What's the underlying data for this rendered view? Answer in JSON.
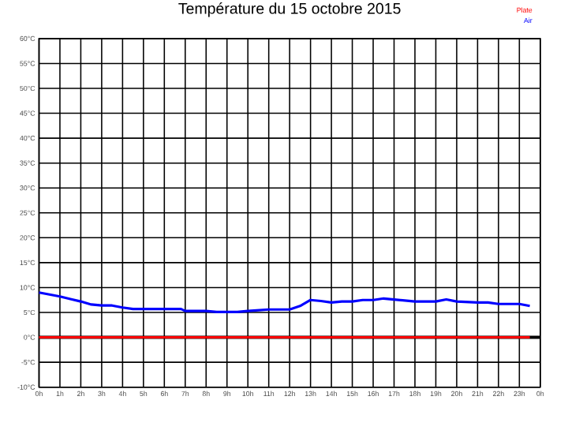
{
  "chart_data": {
    "type": "line",
    "title": "Température du 15 octobre 2015",
    "x": [
      "2015-10-15T00:00",
      "2015-10-15T00:30",
      "2015-10-15T01:00",
      "2015-10-15T01:30",
      "2015-10-15T02:00",
      "2015-10-15T02:30",
      "2015-10-15T03:00",
      "2015-10-15T03:30",
      "2015-10-15T04:00",
      "2015-10-15T04:30",
      "2015-10-15T05:00",
      "2015-10-15T06:00",
      "2015-10-15T06:48",
      "2015-10-15T07:00",
      "2015-10-15T08:00",
      "2015-10-15T08:30",
      "2015-10-15T09:30",
      "2015-10-15T10:00",
      "2015-10-15T11:00",
      "2015-10-15T12:00",
      "2015-10-15T12:30",
      "2015-10-15T13:00",
      "2015-10-15T13:30",
      "2015-10-15T14:00",
      "2015-10-15T14:30",
      "2015-10-15T15:00",
      "2015-10-15T15:30",
      "2015-10-15T16:00",
      "2015-10-15T16:30",
      "2015-10-15T17:00",
      "2015-10-15T18:00",
      "2015-10-15T19:00",
      "2015-10-15T19:30",
      "2015-10-15T20:00",
      "2015-10-15T21:00",
      "2015-10-15T21:30",
      "2015-10-15T22:00",
      "2015-10-15T23:00",
      "2015-10-15T23:30"
    ],
    "series": [
      {
        "name": "Plate",
        "color": "#ff0000",
        "x": [
          "2015-10-15T00:00",
          "2015-10-15T23:30"
        ],
        "values": [
          0,
          0
        ]
      },
      {
        "name": "Air",
        "color": "#0000ff",
        "values": [
          9,
          8.6,
          8.2,
          7.7,
          7.2,
          6.6,
          6.4,
          6.4,
          6.0,
          5.7,
          5.7,
          5.7,
          5.7,
          5.3,
          5.3,
          5.1,
          5.1,
          5.3,
          5.6,
          5.6,
          6.3,
          7.5,
          7.3,
          7.0,
          7.2,
          7.2,
          7.5,
          7.5,
          7.8,
          7.6,
          7.2,
          7.2,
          7.6,
          7.2,
          7.0,
          7.0,
          6.7,
          6.7,
          6.3
        ]
      }
    ],
    "xlim": [
      "2015-10-15T00:00",
      "2015-10-16T00:00"
    ],
    "ylim": [
      -10,
      60
    ],
    "xticks": [
      {
        "value": "2015-10-15T00:00",
        "label": "0h"
      },
      {
        "value": "2015-10-15T01:00",
        "label": "1h"
      },
      {
        "value": "2015-10-15T02:00",
        "label": "2h"
      },
      {
        "value": "2015-10-15T03:00",
        "label": "3h"
      },
      {
        "value": "2015-10-15T04:00",
        "label": "4h"
      },
      {
        "value": "2015-10-15T05:00",
        "label": "5h"
      },
      {
        "value": "2015-10-15T06:00",
        "label": "6h"
      },
      {
        "value": "2015-10-15T07:00",
        "label": "7h"
      },
      {
        "value": "2015-10-15T08:00",
        "label": "8h"
      },
      {
        "value": "2015-10-15T09:00",
        "label": "9h"
      },
      {
        "value": "2015-10-15T10:00",
        "label": "10h"
      },
      {
        "value": "2015-10-15T11:00",
        "label": "11h"
      },
      {
        "value": "2015-10-15T12:00",
        "label": "12h"
      },
      {
        "value": "2015-10-15T13:00",
        "label": "13h"
      },
      {
        "value": "2015-10-15T14:00",
        "label": "14h"
      },
      {
        "value": "2015-10-15T15:00",
        "label": "15h"
      },
      {
        "value": "2015-10-15T16:00",
        "label": "16h"
      },
      {
        "value": "2015-10-15T17:00",
        "label": "17h"
      },
      {
        "value": "2015-10-15T18:00",
        "label": "18h"
      },
      {
        "value": "2015-10-15T19:00",
        "label": "19h"
      },
      {
        "value": "2015-10-15T20:00",
        "label": "20h"
      },
      {
        "value": "2015-10-15T21:00",
        "label": "21h"
      },
      {
        "value": "2015-10-15T22:00",
        "label": "22h"
      },
      {
        "value": "2015-10-15T23:00",
        "label": "23h"
      },
      {
        "value": "2015-10-16T00:00",
        "label": "0h"
      }
    ],
    "yticks": [
      {
        "value": -10,
        "label": "-10°C"
      },
      {
        "value": -5,
        "label": "-5°C"
      },
      {
        "value": 0,
        "label": "0°C"
      },
      {
        "value": 5,
        "label": "5°C"
      },
      {
        "value": 10,
        "label": "10°C"
      },
      {
        "value": 15,
        "label": "15°C"
      },
      {
        "value": 20,
        "label": "20°C"
      },
      {
        "value": 25,
        "label": "25°C"
      },
      {
        "value": 30,
        "label": "30°C"
      },
      {
        "value": 35,
        "label": "35°C"
      },
      {
        "value": 40,
        "label": "40°C"
      },
      {
        "value": 45,
        "label": "45°C"
      },
      {
        "value": 50,
        "label": "50°C"
      },
      {
        "value": 55,
        "label": "55°C"
      },
      {
        "value": 60,
        "label": "60°C"
      }
    ],
    "ref_lines": [
      {
        "axis": "y",
        "value": 0,
        "color": "#000000"
      }
    ],
    "grid": true,
    "legend": "top right",
    "marker": "none",
    "line_style": "solid"
  }
}
